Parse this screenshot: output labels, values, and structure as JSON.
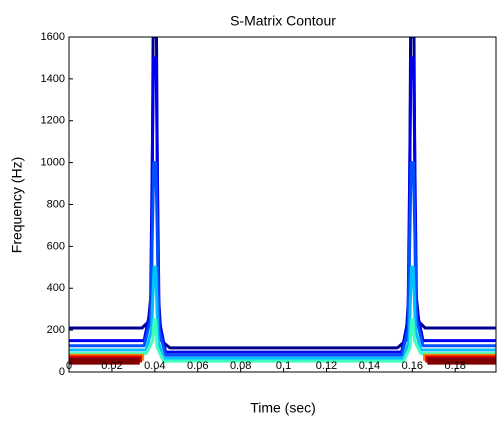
{
  "chart_data": {
    "type": "contour",
    "title": "S-Matrix Contour",
    "xlabel": "Time (sec)",
    "ylabel": "Frequency (Hz)",
    "xlim": [
      0,
      0.199
    ],
    "ylim": [
      0,
      1600
    ],
    "xticks": [
      0,
      0.02,
      0.04,
      0.06,
      0.08,
      0.1,
      0.12,
      0.14,
      0.16,
      0.18
    ],
    "yticks": [
      0,
      200,
      400,
      600,
      800,
      1000,
      1200,
      1400,
      1600
    ],
    "series": [
      {
        "color": "#00008f",
        "x": [
          0,
          0.034,
          0.037,
          0.0385,
          0.0392,
          0.0408,
          0.0415,
          0.043,
          0.047,
          0.153,
          0.157,
          0.1585,
          0.1592,
          0.1608,
          0.1615,
          0.163,
          0.166,
          0.199
        ],
        "values": [
          210,
          210,
          240,
          400,
          1600,
          1600,
          400,
          150,
          115,
          115,
          150,
          400,
          1600,
          1600,
          400,
          240,
          210,
          210
        ]
      },
      {
        "color": "#0000ee",
        "x": [
          0,
          0.035,
          0.038,
          0.0394,
          0.0406,
          0.042,
          0.045,
          0.155,
          0.158,
          0.1594,
          0.1606,
          0.162,
          0.165,
          0.199
        ],
        "values": [
          150,
          150,
          300,
          1500,
          1500,
          250,
          95,
          95,
          250,
          1500,
          1500,
          300,
          150,
          150
        ]
      },
      {
        "color": "#0050ff",
        "x": [
          0,
          0.035,
          0.038,
          0.0395,
          0.0405,
          0.042,
          0.045,
          0.155,
          0.158,
          0.1595,
          0.1605,
          0.162,
          0.165,
          0.199
        ],
        "values": [
          125,
          125,
          250,
          1000,
          1000,
          200,
          80,
          80,
          200,
          1000,
          1000,
          250,
          125,
          125
        ]
      },
      {
        "color": "#00c0ff",
        "x": [
          0,
          0.036,
          0.0385,
          0.0396,
          0.0404,
          0.0415,
          0.044,
          0.156,
          0.1585,
          0.1596,
          0.1604,
          0.1615,
          0.164,
          0.199
        ],
        "values": [
          105,
          105,
          200,
          500,
          500,
          150,
          65,
          65,
          150,
          500,
          500,
          200,
          105,
          105
        ]
      },
      {
        "color": "#40ffc0",
        "x": [
          0,
          0.036,
          0.039,
          0.0397,
          0.0403,
          0.041,
          0.044,
          0.156,
          0.159,
          0.1597,
          0.1603,
          0.161,
          0.164,
          0.199
        ],
        "values": [
          88,
          88,
          150,
          250,
          250,
          120,
          52,
          52,
          120,
          250,
          250,
          150,
          88,
          88
        ]
      },
      {
        "color": "#c0ff40",
        "x": [
          0,
          0.035,
          0.036,
          0.164,
          0.165,
          0.199
        ],
        "values": [
          78,
          78,
          null,
          null,
          78,
          78
        ]
      },
      {
        "color": "#ff8000",
        "x": [
          0,
          0.035,
          0.036,
          0.164,
          0.165,
          0.199
        ],
        "values": [
          70,
          70,
          null,
          null,
          70,
          70
        ]
      },
      {
        "color": "#e00000",
        "x": [
          0,
          0.034,
          0.035,
          0.165,
          0.166,
          0.199
        ],
        "values": [
          62,
          62,
          null,
          null,
          62,
          62
        ]
      },
      {
        "color": "#800000",
        "x": [
          0,
          0.033,
          0.034,
          0.166,
          0.167,
          0.199
        ],
        "values": [
          52,
          52,
          null,
          null,
          52,
          52
        ]
      }
    ]
  }
}
